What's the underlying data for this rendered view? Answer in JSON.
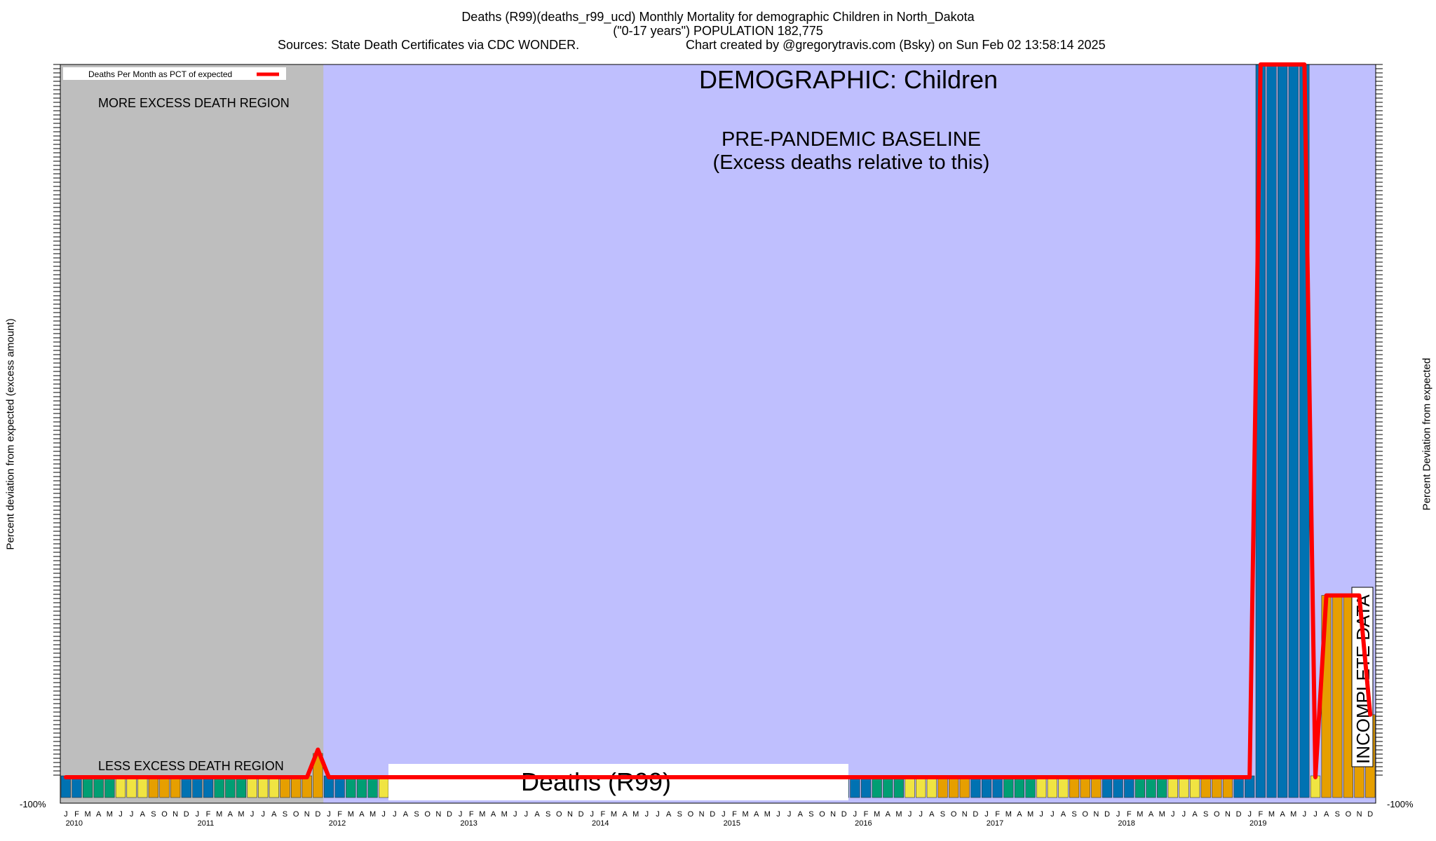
{
  "header": {
    "title_line1": "Deaths (R99)(deaths_r99_ucd) Monthly Mortality for demographic Children in North_Dakota",
    "title_line2": "(\"0-17 years\") POPULATION 182,775",
    "sources": "Sources: State Death Certificates via CDC WONDER.",
    "credit": "Chart created by @gregorytravis.com (Bsky) on Sun Feb 02 13:58:14 2025"
  },
  "axes": {
    "ylabel_left": "Percent deviation from expected (excess amount)",
    "ylabel_right": "Percent Deviation from expected",
    "bottom_tick_left": "-100%",
    "bottom_tick_right": "-100%",
    "month_letters": [
      "J",
      "F",
      "M",
      "A",
      "M",
      "J",
      "J",
      "A",
      "S",
      "O",
      "N",
      "D"
    ],
    "years": [
      "2010",
      "2011",
      "2012",
      "2013",
      "2014",
      "2015",
      "2016",
      "2017",
      "2018",
      "2019"
    ]
  },
  "annotations": {
    "legend_label": "Deaths Per Month as PCT of expected",
    "more_region": "MORE EXCESS DEATH REGION",
    "less_region": "LESS EXCESS DEATH REGION",
    "demographic": "DEMOGRAPHIC: Children",
    "baseline_line1": "PRE-PANDEMIC BASELINE",
    "baseline_line2": "(Excess deaths relative to this)",
    "center_label": "Deaths (R99)",
    "incomplete": "INCOMPLETE DATA"
  },
  "colors": {
    "baseline_region": "#bfbffe",
    "gray_region": "#bebebe",
    "line": "#ff0000",
    "bar_blue": "#0072b2",
    "bar_green": "#009e73",
    "bar_yellow": "#f0e442",
    "bar_orange": "#e69f00"
  },
  "chart_data": {
    "type": "bar",
    "x_start": "2010-01",
    "x_end": "2019-12",
    "baseline_period": [
      "2010-01",
      "2011-12"
    ],
    "ylim": [
      -100,
      4800
    ],
    "series": [
      {
        "name": "Deaths Per Month as PCT of expected",
        "values": [
          -100,
          -100,
          -100,
          -100,
          -100,
          -100,
          -100,
          -100,
          -100,
          -100,
          -100,
          -100,
          -100,
          -100,
          -100,
          -100,
          -100,
          -100,
          -100,
          -100,
          -100,
          -100,
          -100,
          90,
          -100,
          -100,
          -100,
          -100,
          -100,
          -100,
          -100,
          -100,
          -100,
          -100,
          -100,
          -100,
          -100,
          -100,
          -100,
          -100,
          -100,
          -100,
          -100,
          -100,
          -100,
          -100,
          -100,
          -100,
          -100,
          -100,
          -100,
          -100,
          -100,
          -100,
          -100,
          -100,
          -100,
          -100,
          -100,
          -100,
          -100,
          -100,
          -100,
          -100,
          -100,
          -100,
          -100,
          -100,
          -100,
          -100,
          -100,
          -100,
          -100,
          -100,
          -100,
          -100,
          -100,
          -100,
          -100,
          -100,
          -100,
          -100,
          -100,
          -100,
          -100,
          -100,
          -100,
          -100,
          -100,
          -100,
          -100,
          -100,
          -100,
          -100,
          -100,
          -100,
          -100,
          -100,
          -100,
          -100,
          -100,
          -100,
          -100,
          -100,
          -100,
          -100,
          -100,
          -100,
          -100,
          4800,
          4800,
          4800,
          4800,
          4800,
          -100,
          1150,
          1150,
          1150,
          1150,
          330
        ]
      }
    ]
  }
}
